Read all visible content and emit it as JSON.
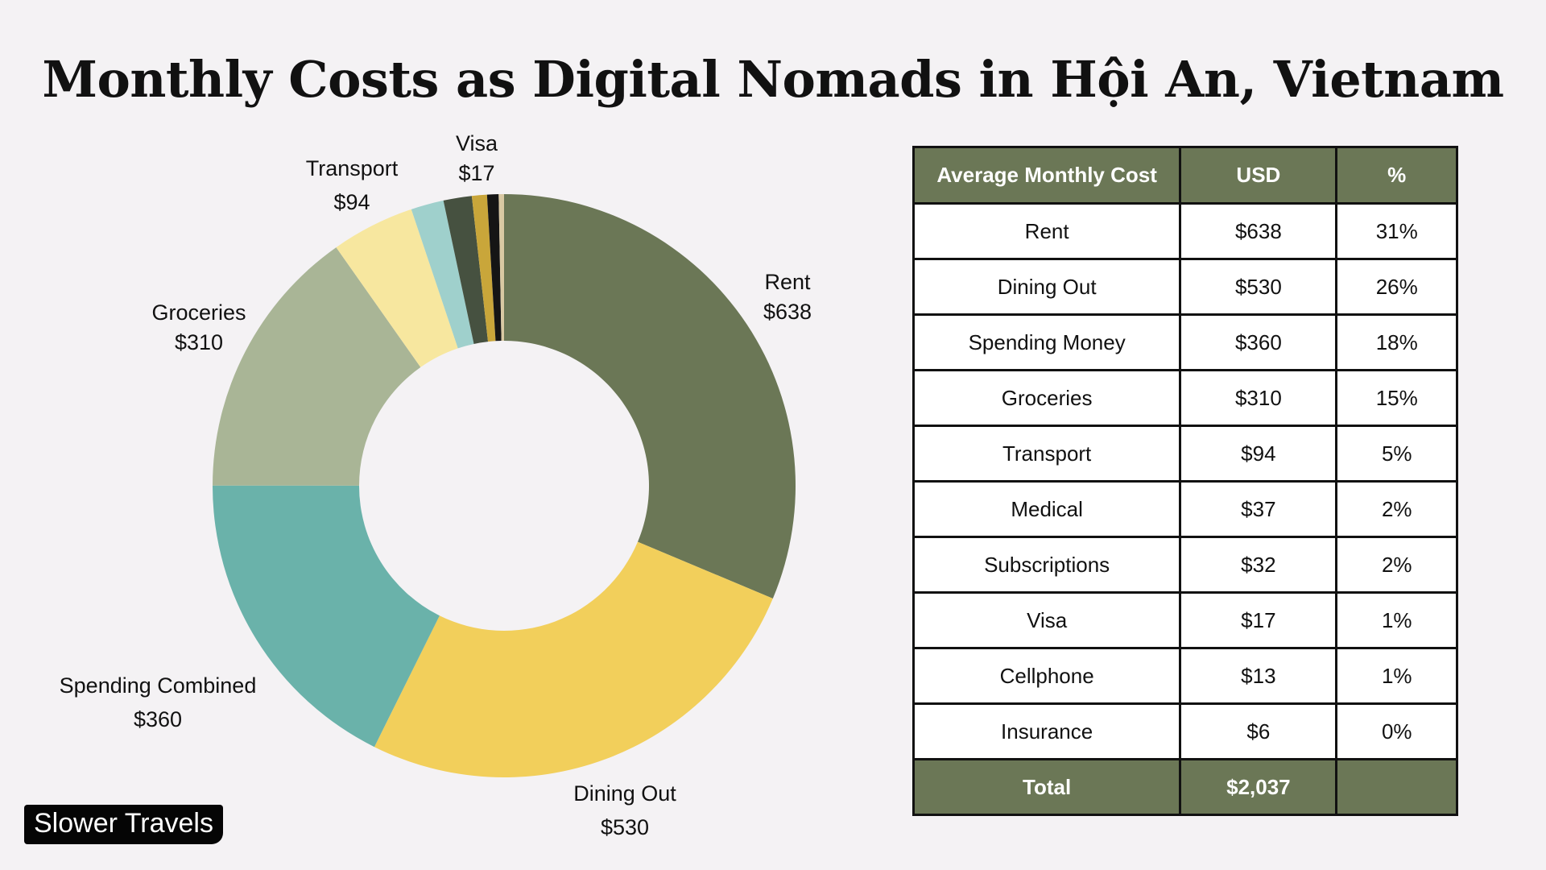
{
  "title": "Monthly Costs as Digital Nomads in Hội An, Vietnam",
  "brand": "Slower Travels",
  "chart_data": {
    "type": "pie",
    "variant": "donut",
    "title": "Monthly Costs as Digital Nomads in Hội An, Vietnam",
    "slices": [
      {
        "name": "Rent",
        "value": 638,
        "label": "$638",
        "color": "#6b7756",
        "show_label": true
      },
      {
        "name": "Dining Out",
        "value": 530,
        "label": "$530",
        "color": "#f2cf5b",
        "show_label": true
      },
      {
        "name": "Spending Combined",
        "value": 360,
        "label": "$360",
        "color": "#6ab2aa",
        "show_label": true
      },
      {
        "name": "Groceries",
        "value": 310,
        "label": "$310",
        "color": "#a9b596",
        "show_label": true
      },
      {
        "name": "Transport",
        "value": 94,
        "label": "$94",
        "color": "#f7e79f",
        "show_label": true
      },
      {
        "name": "Medical",
        "value": 37,
        "label": "$37",
        "color": "#9fd0cc",
        "show_label": false
      },
      {
        "name": "Subscriptions",
        "value": 32,
        "label": "$32",
        "color": "#465140",
        "show_label": false
      },
      {
        "name": "Visa",
        "value": 17,
        "label": "$17",
        "color": "#c9a63a",
        "show_label": true
      },
      {
        "name": "Cellphone",
        "value": 13,
        "label": "$13",
        "color": "#151515",
        "show_label": false
      },
      {
        "name": "Insurance",
        "value": 6,
        "label": "$6",
        "color": "#d9c9a3",
        "show_label": false
      }
    ]
  },
  "table": {
    "headers": [
      "Average Monthly Cost",
      "USD",
      "%"
    ],
    "rows": [
      [
        "Rent",
        "$638",
        "31%"
      ],
      [
        "Dining Out",
        "$530",
        "26%"
      ],
      [
        "Spending Money",
        "$360",
        "18%"
      ],
      [
        "Groceries",
        "$310",
        "15%"
      ],
      [
        "Transport",
        "$94",
        "5%"
      ],
      [
        "Medical",
        "$37",
        "2%"
      ],
      [
        "Subscriptions",
        "$32",
        "2%"
      ],
      [
        "Visa",
        "$17",
        "1%"
      ],
      [
        "Cellphone",
        "$13",
        "1%"
      ],
      [
        "Insurance",
        "$6",
        "0%"
      ]
    ],
    "total": [
      "Total",
      "$2,037",
      ""
    ]
  }
}
